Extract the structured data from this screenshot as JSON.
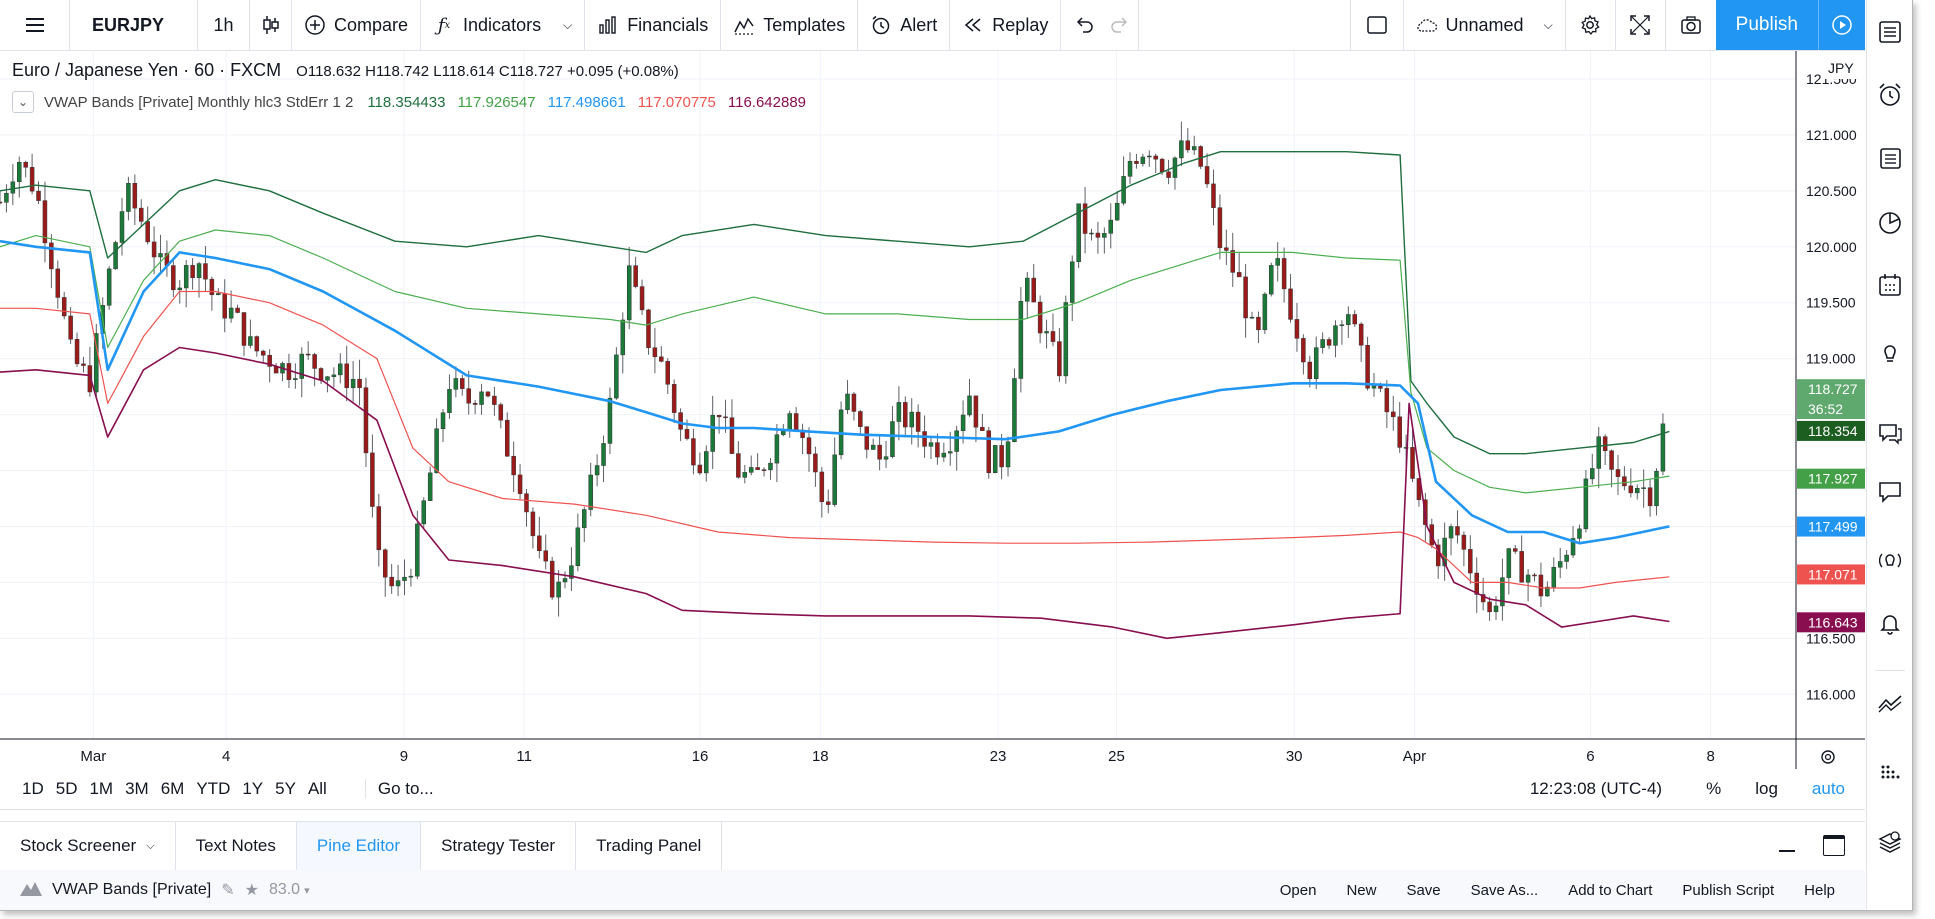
{
  "toolbar": {
    "symbol": "EURJPY",
    "interval": "1h",
    "compare": "Compare",
    "indicators": "Indicators",
    "financials": "Financials",
    "templates": "Templates",
    "alert": "Alert",
    "replay": "Replay",
    "layout_name": "Unnamed",
    "publish": "Publish"
  },
  "legend": {
    "title": "Euro / Japanese Yen · 60 · FXCM",
    "open": "O118.632",
    "high": "H118.742",
    "low": "L118.614",
    "close": "C118.727",
    "change": "+0.095 (+0.08%)",
    "indicator": "VWAP Bands [Private] Monthly hlc3 StdErr 1 2",
    "ind_values": [
      "118.354433",
      "117.926547",
      "117.498661",
      "117.070775",
      "116.642889"
    ]
  },
  "colors": {
    "up": "#26a69a",
    "down": "#ef5350",
    "candle_body_up": "#1b7a39",
    "candle_body_down": "#9b1b1b",
    "band1": "#1f6e3d",
    "band2": "#4caf50",
    "mid": "#2196f3",
    "band3": "#ef5350",
    "band4": "#880e4f",
    "accent": "#2196f3"
  },
  "price_axis": {
    "currency": "JPY",
    "ticks": [
      "121.500",
      "121.000",
      "120.500",
      "120.000",
      "119.500",
      "119.000",
      "116.500",
      "116.000"
    ],
    "tick_values": [
      121.5,
      121.0,
      120.5,
      120.0,
      119.5,
      119.0,
      116.5,
      116.0
    ],
    "labels": [
      {
        "text": "118.727",
        "value": 118.727,
        "color": "#5fa86e"
      },
      {
        "text": "36:52",
        "value": 118.55,
        "color": "#5fa86e"
      },
      {
        "text": "118.354",
        "value": 118.354,
        "color": "#1b5e20"
      },
      {
        "text": "117.927",
        "value": 117.927,
        "color": "#43a047"
      },
      {
        "text": "117.499",
        "value": 117.499,
        "color": "#2196f3"
      },
      {
        "text": "117.071",
        "value": 117.071,
        "color": "#ef5350"
      },
      {
        "text": "116.643",
        "value": 116.643,
        "color": "#880e4f"
      }
    ]
  },
  "time_axis": {
    "labels": [
      "Mar",
      "4",
      "9",
      "11",
      "16",
      "18",
      "23",
      "25",
      "30",
      "Apr",
      "6",
      "8"
    ]
  },
  "chart_data": {
    "type": "line",
    "y_range": [
      115.6,
      121.75
    ],
    "x_range": [
      0,
      100
    ],
    "tick_positions": [
      5.2,
      12.6,
      22.5,
      29.2,
      39.0,
      45.7,
      55.6,
      62.2,
      72.1,
      78.8,
      88.6,
      95.3
    ],
    "series": [
      {
        "key": "band1",
        "points": [
          [
            0,
            120.5
          ],
          [
            2,
            120.55
          ],
          [
            5,
            120.5
          ],
          [
            6,
            119.9
          ],
          [
            8,
            120.2
          ],
          [
            10,
            120.5
          ],
          [
            12,
            120.6
          ],
          [
            15,
            120.5
          ],
          [
            18,
            120.3
          ],
          [
            22,
            120.05
          ],
          [
            26,
            120.0
          ],
          [
            30,
            120.1
          ],
          [
            34,
            120.0
          ],
          [
            36,
            119.95
          ],
          [
            38,
            120.1
          ],
          [
            42,
            120.2
          ],
          [
            46,
            120.1
          ],
          [
            50,
            120.05
          ],
          [
            54,
            120.0
          ],
          [
            57,
            120.05
          ],
          [
            60,
            120.3
          ],
          [
            63,
            120.55
          ],
          [
            66,
            120.75
          ],
          [
            68,
            120.85
          ],
          [
            70,
            120.85
          ],
          [
            72,
            120.85
          ],
          [
            75,
            120.85
          ],
          [
            78,
            120.82
          ],
          [
            78.6,
            118.8
          ],
          [
            79.5,
            118.6
          ],
          [
            81,
            118.3
          ],
          [
            83,
            118.15
          ],
          [
            85,
            118.15
          ],
          [
            88,
            118.2
          ],
          [
            91,
            118.25
          ],
          [
            93,
            118.35
          ]
        ]
      },
      {
        "key": "band2",
        "points": [
          [
            0,
            120.0
          ],
          [
            2,
            120.1
          ],
          [
            5,
            120.0
          ],
          [
            6,
            119.1
          ],
          [
            8,
            119.7
          ],
          [
            10,
            120.05
          ],
          [
            12,
            120.15
          ],
          [
            15,
            120.1
          ],
          [
            18,
            119.9
          ],
          [
            22,
            119.6
          ],
          [
            26,
            119.45
          ],
          [
            30,
            119.4
          ],
          [
            34,
            119.35
          ],
          [
            36,
            119.3
          ],
          [
            38,
            119.4
          ],
          [
            42,
            119.55
          ],
          [
            46,
            119.4
          ],
          [
            50,
            119.4
          ],
          [
            54,
            119.35
          ],
          [
            57,
            119.35
          ],
          [
            60,
            119.5
          ],
          [
            63,
            119.7
          ],
          [
            66,
            119.85
          ],
          [
            68,
            119.95
          ],
          [
            70,
            119.95
          ],
          [
            72,
            119.95
          ],
          [
            75,
            119.9
          ],
          [
            78,
            119.88
          ],
          [
            78.6,
            118.7
          ],
          [
            79.5,
            118.2
          ],
          [
            81,
            118.0
          ],
          [
            83,
            117.85
          ],
          [
            85,
            117.8
          ],
          [
            88,
            117.85
          ],
          [
            91,
            117.9
          ],
          [
            93,
            117.95
          ]
        ]
      },
      {
        "key": "mid",
        "points": [
          [
            0,
            120.05
          ],
          [
            2,
            120.0
          ],
          [
            5,
            119.95
          ],
          [
            6,
            118.9
          ],
          [
            8,
            119.6
          ],
          [
            10,
            119.95
          ],
          [
            12,
            119.9
          ],
          [
            15,
            119.8
          ],
          [
            18,
            119.6
          ],
          [
            22,
            119.25
          ],
          [
            26,
            118.85
          ],
          [
            30,
            118.75
          ],
          [
            34,
            118.62
          ],
          [
            36,
            118.52
          ],
          [
            38,
            118.42
          ],
          [
            40,
            118.38
          ],
          [
            42,
            118.38
          ],
          [
            45,
            118.35
          ],
          [
            48,
            118.32
          ],
          [
            52,
            118.3
          ],
          [
            56,
            118.28
          ],
          [
            59,
            118.35
          ],
          [
            62,
            118.5
          ],
          [
            65,
            118.62
          ],
          [
            68,
            118.72
          ],
          [
            72,
            118.78
          ],
          [
            75,
            118.78
          ],
          [
            78,
            118.76
          ],
          [
            79,
            118.6
          ],
          [
            80,
            117.9
          ],
          [
            82,
            117.6
          ],
          [
            84,
            117.45
          ],
          [
            86,
            117.45
          ],
          [
            88,
            117.35
          ],
          [
            90,
            117.4
          ],
          [
            93,
            117.5
          ]
        ]
      },
      {
        "key": "band3",
        "points": [
          [
            0,
            119.45
          ],
          [
            2,
            119.45
          ],
          [
            5,
            119.4
          ],
          [
            6,
            118.6
          ],
          [
            8,
            119.2
          ],
          [
            10,
            119.6
          ],
          [
            12,
            119.6
          ],
          [
            15,
            119.5
          ],
          [
            18,
            119.3
          ],
          [
            21,
            119.0
          ],
          [
            23,
            118.2
          ],
          [
            25,
            117.9
          ],
          [
            28,
            117.75
          ],
          [
            32,
            117.7
          ],
          [
            36,
            117.6
          ],
          [
            40,
            117.45
          ],
          [
            44,
            117.4
          ],
          [
            48,
            117.38
          ],
          [
            52,
            117.36
          ],
          [
            56,
            117.35
          ],
          [
            60,
            117.35
          ],
          [
            64,
            117.36
          ],
          [
            68,
            117.38
          ],
          [
            72,
            117.4
          ],
          [
            75,
            117.42
          ],
          [
            78,
            117.45
          ],
          [
            79,
            117.4
          ],
          [
            80,
            117.3
          ],
          [
            82,
            117.0
          ],
          [
            84,
            117.0
          ],
          [
            86,
            116.95
          ],
          [
            88,
            116.95
          ],
          [
            90,
            117.0
          ],
          [
            93,
            117.05
          ]
        ]
      },
      {
        "key": "band4",
        "points": [
          [
            0,
            118.88
          ],
          [
            2,
            118.9
          ],
          [
            5,
            118.85
          ],
          [
            6,
            118.3
          ],
          [
            8,
            118.9
          ],
          [
            10,
            119.1
          ],
          [
            12,
            119.05
          ],
          [
            15,
            118.95
          ],
          [
            18,
            118.8
          ],
          [
            21,
            118.45
          ],
          [
            23,
            117.6
          ],
          [
            25,
            117.2
          ],
          [
            28,
            117.15
          ],
          [
            32,
            117.05
          ],
          [
            36,
            116.9
          ],
          [
            38,
            116.75
          ],
          [
            42,
            116.72
          ],
          [
            46,
            116.7
          ],
          [
            50,
            116.7
          ],
          [
            54,
            116.7
          ],
          [
            58,
            116.68
          ],
          [
            62,
            116.6
          ],
          [
            65,
            116.5
          ],
          [
            68,
            116.55
          ],
          [
            72,
            116.62
          ],
          [
            75,
            116.68
          ],
          [
            78,
            116.72
          ],
          [
            78.5,
            118.6
          ],
          [
            79.5,
            117.5
          ],
          [
            81,
            117.0
          ],
          [
            83,
            116.85
          ],
          [
            85,
            116.8
          ],
          [
            87,
            116.6
          ],
          [
            89,
            116.65
          ],
          [
            91,
            116.7
          ],
          [
            93,
            116.65
          ]
        ]
      }
    ]
  },
  "range_bar": {
    "ranges": [
      "1D",
      "5D",
      "1M",
      "3M",
      "6M",
      "YTD",
      "1Y",
      "5Y",
      "All"
    ],
    "goto": "Go to...",
    "clock": "12:23:08 (UTC-4)",
    "pct": "%",
    "log": "log",
    "auto": "auto"
  },
  "bottom_tabs": [
    "Stock Screener",
    "Text Notes",
    "Pine Editor",
    "Strategy Tester",
    "Trading Panel"
  ],
  "pine": {
    "script_name": "VWAP Bands [Private]",
    "version": "83.0",
    "actions": [
      "Open",
      "New",
      "Save",
      "Save As...",
      "Add to Chart",
      "Publish Script",
      "Help"
    ]
  }
}
